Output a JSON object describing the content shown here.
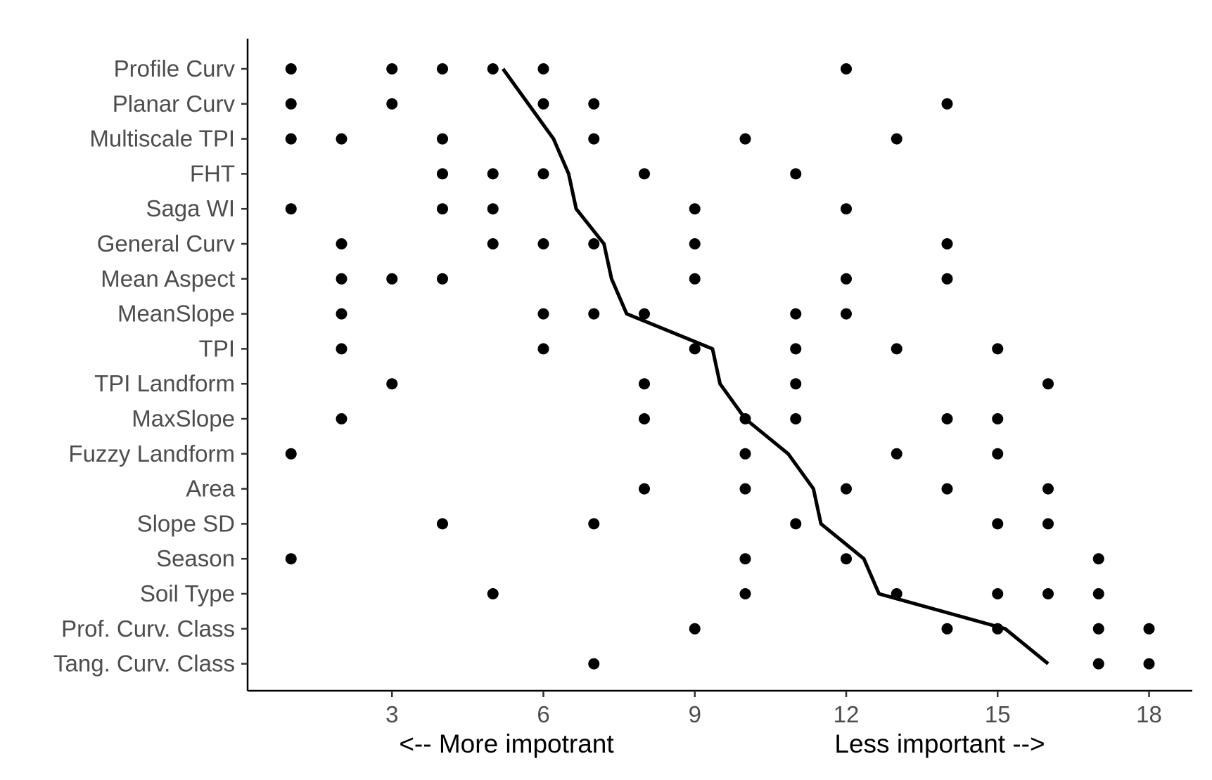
{
  "chart_data": {
    "type": "scatter",
    "xlabel_left": "<-- More impotrant",
    "xlabel_right": "Less important -->",
    "xlim": [
      0,
      18.8
    ],
    "xticks": [
      3,
      6,
      9,
      12,
      15,
      18
    ],
    "categories": [
      "Profile Curv",
      "Planar Curv",
      "Multiscale TPI",
      "FHT",
      "Saga WI",
      "General Curv",
      "Mean Aspect",
      "MeanSlope",
      "TPI",
      "TPI Landform",
      "MaxSlope",
      "Fuzzy Landform",
      "Area",
      "Slope SD",
      "Season",
      "Soil Type",
      "Prof. Curv. Class",
      "Tang. Curv. Class"
    ],
    "points": [
      [
        1,
        3,
        4,
        5,
        6,
        12
      ],
      [
        1,
        3,
        6,
        7,
        14
      ],
      [
        1,
        2,
        4,
        7,
        10,
        13
      ],
      [
        4,
        5,
        6,
        8,
        11
      ],
      [
        1,
        4,
        5,
        9,
        12
      ],
      [
        2,
        5,
        6,
        7,
        9,
        14
      ],
      [
        2,
        3,
        4,
        9,
        12,
        14
      ],
      [
        2,
        6,
        7,
        8,
        11,
        12
      ],
      [
        2,
        6,
        9,
        11,
        13,
        15
      ],
      [
        3,
        8,
        11,
        16
      ],
      [
        2,
        8,
        10,
        11,
        14,
        15
      ],
      [
        1,
        10,
        13,
        15
      ],
      [
        8,
        10,
        12,
        14,
        16
      ],
      [
        4,
        7,
        11,
        15,
        16
      ],
      [
        1,
        10,
        12,
        17
      ],
      [
        5,
        10,
        13,
        15,
        16,
        17
      ],
      [
        9,
        14,
        15,
        17,
        18
      ],
      [
        7,
        17,
        18
      ]
    ],
    "trend_line": [
      [
        5.2,
        "Profile Curv"
      ],
      [
        6.2,
        "Multiscale TPI"
      ],
      [
        6.5,
        "FHT"
      ],
      [
        6.65,
        "Saga WI"
      ],
      [
        7.2,
        "General Curv"
      ],
      [
        7.35,
        "Mean Aspect"
      ],
      [
        7.65,
        "MeanSlope"
      ],
      [
        9.35,
        "TPI"
      ],
      [
        9.5,
        "TPI Landform"
      ],
      [
        10.0,
        "MaxSlope"
      ],
      [
        10.85,
        "Fuzzy Landform"
      ],
      [
        11.35,
        "Area"
      ],
      [
        11.5,
        "Slope SD"
      ],
      [
        12.35,
        "Season"
      ],
      [
        12.65,
        "Soil Type"
      ],
      [
        15.15,
        "Prof. Curv. Class"
      ],
      [
        16.0,
        "Tang. Curv. Class"
      ]
    ],
    "point_color": "#000000",
    "line_color": "#000000",
    "grid": false
  }
}
